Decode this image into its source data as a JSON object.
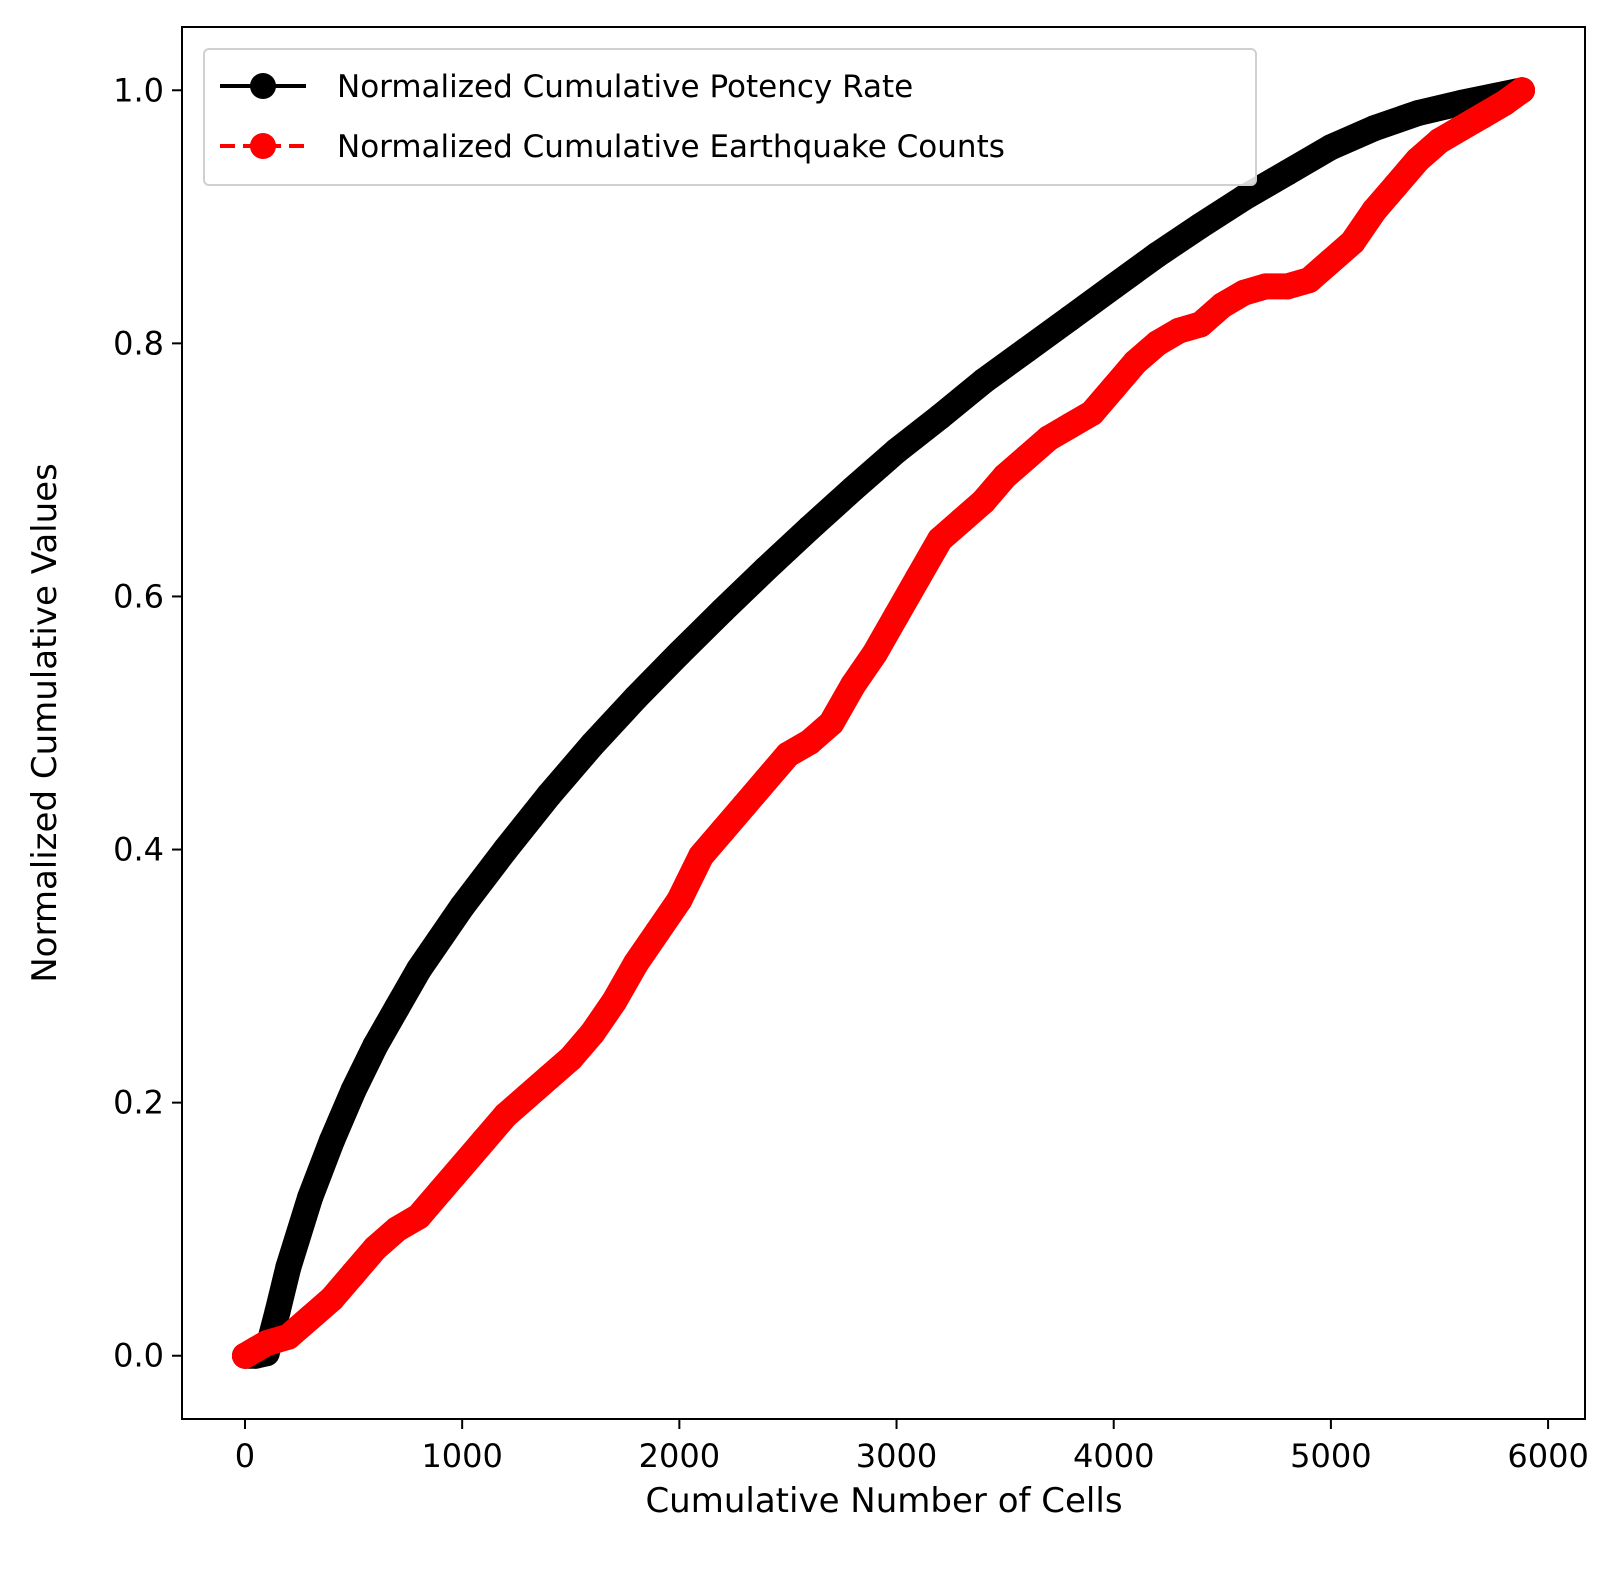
{
  "chart_data": {
    "type": "line",
    "title": "",
    "xlabel": "Cumulative Number of Cells",
    "ylabel": "Normalized Cumulative Values",
    "xlim": [
      -290,
      6170
    ],
    "ylim": [
      -0.05,
      1.05
    ],
    "xticks": [
      0,
      1000,
      2000,
      3000,
      4000,
      5000,
      6000
    ],
    "xtick_labels": [
      "0",
      "1000",
      "2000",
      "3000",
      "4000",
      "5000",
      "6000"
    ],
    "yticks": [
      0.0,
      0.2,
      0.4,
      0.6,
      0.8,
      1.0
    ],
    "ytick_labels": [
      "0.0",
      "0.2",
      "0.4",
      "0.6",
      "0.8",
      "1.0"
    ],
    "grid": false,
    "legend_position": "upper-left",
    "series": [
      {
        "name": "Normalized Cumulative Potency Rate",
        "color": "#000000",
        "linestyle": "solid",
        "marker": "circle",
        "x": [
          0,
          50,
          100,
          150,
          200,
          300,
          400,
          500,
          600,
          700,
          800,
          1000,
          1200,
          1400,
          1600,
          1800,
          2000,
          2200,
          2400,
          2600,
          2800,
          3000,
          3200,
          3400,
          3600,
          3800,
          4000,
          4200,
          4400,
          4600,
          4800,
          5000,
          5200,
          5400,
          5600,
          5880
        ],
        "y": [
          0.0,
          0.0,
          0.002,
          0.035,
          0.07,
          0.125,
          0.17,
          0.21,
          0.245,
          0.275,
          0.305,
          0.355,
          0.4,
          0.443,
          0.483,
          0.52,
          0.555,
          0.589,
          0.622,
          0.654,
          0.685,
          0.715,
          0.742,
          0.77,
          0.795,
          0.82,
          0.845,
          0.87,
          0.893,
          0.915,
          0.935,
          0.955,
          0.97,
          0.982,
          0.99,
          1.0
        ]
      },
      {
        "name": "Normalized Cumulative Earthquake Counts",
        "color": "#ff0000",
        "linestyle": "dashed",
        "marker": "circle",
        "x": [
          0,
          50,
          100,
          200,
          300,
          400,
          500,
          600,
          700,
          800,
          900,
          1000,
          1100,
          1200,
          1300,
          1400,
          1500,
          1600,
          1700,
          1800,
          1900,
          2000,
          2100,
          2200,
          2300,
          2400,
          2500,
          2600,
          2700,
          2800,
          2900,
          3000,
          3100,
          3200,
          3300,
          3400,
          3500,
          3600,
          3700,
          3800,
          3900,
          4000,
          4100,
          4200,
          4300,
          4400,
          4500,
          4600,
          4700,
          4800,
          4900,
          5000,
          5100,
          5200,
          5300,
          5400,
          5500,
          5600,
          5700,
          5800,
          5880
        ],
        "y": [
          0.0,
          0.005,
          0.01,
          0.015,
          0.03,
          0.045,
          0.065,
          0.085,
          0.1,
          0.11,
          0.13,
          0.15,
          0.17,
          0.19,
          0.205,
          0.22,
          0.235,
          0.255,
          0.28,
          0.31,
          0.335,
          0.36,
          0.395,
          0.415,
          0.435,
          0.455,
          0.475,
          0.485,
          0.5,
          0.53,
          0.555,
          0.585,
          0.615,
          0.645,
          0.66,
          0.675,
          0.695,
          0.71,
          0.725,
          0.735,
          0.745,
          0.765,
          0.785,
          0.8,
          0.81,
          0.815,
          0.83,
          0.84,
          0.845,
          0.845,
          0.85,
          0.865,
          0.88,
          0.905,
          0.925,
          0.945,
          0.96,
          0.97,
          0.98,
          0.99,
          1.0
        ]
      }
    ]
  }
}
